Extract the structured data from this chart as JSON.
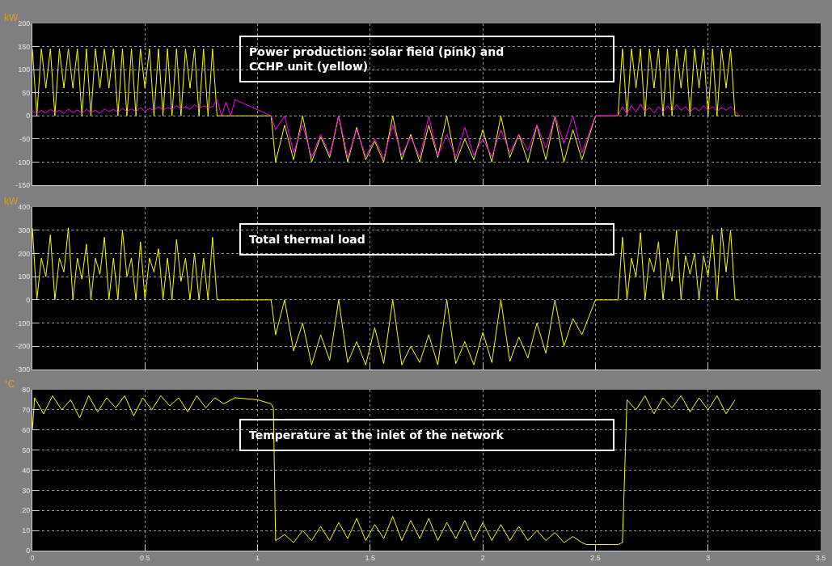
{
  "chart_data": [
    {
      "type": "line",
      "title": "Power production: solar field (pink) and\nCCHP unit (yellow)",
      "ylabel": "kW",
      "xlim": [
        0,
        3.5
      ],
      "xticks": [
        0,
        0.5,
        1,
        1.5,
        2,
        2.5,
        3,
        3.5
      ],
      "ylim": [
        -150,
        200
      ],
      "yticks": [
        -150,
        -100,
        -50,
        0,
        50,
        100,
        150,
        200
      ],
      "grid": true,
      "tick_labels": "y",
      "x": [
        0,
        0.02,
        0.04,
        0.06,
        0.08,
        0.1,
        0.12,
        0.14,
        0.16,
        0.18,
        0.2,
        0.22,
        0.24,
        0.26,
        0.28,
        0.3,
        0.32,
        0.34,
        0.36,
        0.38,
        0.4,
        0.42,
        0.44,
        0.46,
        0.48,
        0.5,
        0.52,
        0.54,
        0.56,
        0.58,
        0.6,
        0.62,
        0.64,
        0.66,
        0.68,
        0.7,
        0.72,
        0.74,
        0.76,
        0.78,
        0.8,
        0.82,
        0.84,
        0.86,
        0.88,
        0.9,
        1.06,
        1.08,
        1.12,
        1.16,
        1.2,
        1.24,
        1.28,
        1.32,
        1.36,
        1.4,
        1.44,
        1.48,
        1.52,
        1.56,
        1.6,
        1.64,
        1.68,
        1.72,
        1.76,
        1.8,
        1.84,
        1.88,
        1.92,
        1.96,
        2,
        2.04,
        2.08,
        2.12,
        2.16,
        2.2,
        2.24,
        2.28,
        2.32,
        2.36,
        2.4,
        2.44,
        2.5,
        2.6,
        2.62,
        2.64,
        2.66,
        2.68,
        2.7,
        2.72,
        2.74,
        2.76,
        2.78,
        2.8,
        2.82,
        2.84,
        2.86,
        2.88,
        2.9,
        2.92,
        2.94,
        2.96,
        2.98,
        3,
        3.02,
        3.04,
        3.06,
        3.08,
        3.1,
        3.12,
        3.14
      ],
      "series": [
        {
          "color": "#ffff00",
          "values": [
            145,
            0,
            145,
            60,
            145,
            0,
            145,
            60,
            145,
            60,
            145,
            0,
            145,
            0,
            145,
            60,
            145,
            60,
            145,
            0,
            145,
            0,
            145,
            0,
            145,
            60,
            145,
            0,
            145,
            0,
            145,
            0,
            145,
            0,
            145,
            60,
            145,
            0,
            145,
            0,
            145,
            0,
            0,
            0,
            0,
            0,
            0,
            -100,
            -20,
            -95,
            0,
            -100,
            -45,
            -90,
            0,
            -100,
            -25,
            -95,
            -55,
            -100,
            0,
            -95,
            -40,
            -100,
            -20,
            -90,
            0,
            -100,
            -50,
            -95,
            -30,
            -100,
            0,
            -90,
            -40,
            -100,
            -20,
            -95,
            0,
            -100,
            -30,
            -95,
            0,
            0,
            145,
            0,
            145,
            60,
            145,
            0,
            145,
            60,
            145,
            0,
            145,
            0,
            145,
            60,
            145,
            0,
            145,
            60,
            145,
            0,
            145,
            0,
            145,
            60,
            145,
            0,
            0
          ]
        },
        {
          "color": "#ff00ff",
          "values": [
            10,
            5,
            12,
            6,
            14,
            8,
            12,
            5,
            15,
            7,
            13,
            6,
            14,
            8,
            12,
            6,
            15,
            9,
            14,
            8,
            16,
            10,
            15,
            9,
            18,
            10,
            16,
            12,
            20,
            12,
            18,
            14,
            22,
            15,
            20,
            14,
            24,
            16,
            22,
            18,
            20,
            35,
            0,
            30,
            0,
            35,
            0,
            -30,
            0,
            -80,
            -20,
            -90,
            -40,
            -85,
            0,
            -90,
            -30,
            -88,
            -50,
            -92,
            -20,
            -85,
            -45,
            -90,
            0,
            -87,
            -40,
            -90,
            -25,
            -85,
            -50,
            -88,
            -30,
            -80,
            -40,
            -75,
            -20,
            -70,
            0,
            -60,
            0,
            -80,
            0,
            0,
            20,
            5,
            22,
            8,
            25,
            10,
            18,
            6,
            20,
            8,
            22,
            10,
            24,
            12,
            20,
            8,
            18,
            10,
            22,
            12,
            20,
            10,
            18,
            12,
            20,
            10,
            0
          ]
        }
      ]
    },
    {
      "type": "line",
      "title": "Total thermal load",
      "ylabel": "kW",
      "xlim": [
        0,
        3.5
      ],
      "xticks": [
        0,
        0.5,
        1,
        1.5,
        2,
        2.5,
        3,
        3.5
      ],
      "ylim": [
        -300,
        400
      ],
      "yticks": [
        -300,
        -200,
        -100,
        0,
        100,
        200,
        300,
        400
      ],
      "grid": true,
      "tick_labels": "y",
      "x": [
        0,
        0.02,
        0.04,
        0.06,
        0.08,
        0.1,
        0.12,
        0.14,
        0.16,
        0.18,
        0.2,
        0.22,
        0.24,
        0.26,
        0.28,
        0.3,
        0.32,
        0.34,
        0.36,
        0.38,
        0.4,
        0.42,
        0.44,
        0.46,
        0.48,
        0.5,
        0.52,
        0.54,
        0.56,
        0.58,
        0.6,
        0.62,
        0.64,
        0.66,
        0.68,
        0.7,
        0.72,
        0.74,
        0.76,
        0.78,
        0.8,
        0.82,
        0.84,
        0.86,
        0.88,
        0.9,
        1.06,
        1.08,
        1.12,
        1.16,
        1.2,
        1.24,
        1.28,
        1.32,
        1.36,
        1.4,
        1.44,
        1.48,
        1.52,
        1.56,
        1.6,
        1.64,
        1.68,
        1.72,
        1.76,
        1.8,
        1.84,
        1.88,
        1.92,
        1.96,
        2,
        2.04,
        2.08,
        2.12,
        2.16,
        2.2,
        2.24,
        2.28,
        2.32,
        2.36,
        2.4,
        2.44,
        2.5,
        2.6,
        2.62,
        2.64,
        2.66,
        2.68,
        2.7,
        2.72,
        2.74,
        2.76,
        2.78,
        2.8,
        2.82,
        2.84,
        2.86,
        2.88,
        2.9,
        2.92,
        2.94,
        2.96,
        2.98,
        3,
        3.02,
        3.04,
        3.06,
        3.08,
        3.1,
        3.12,
        3.14
      ],
      "series": [
        {
          "color": "#ffff00",
          "values": [
            310,
            0,
            180,
            100,
            280,
            0,
            180,
            120,
            310,
            0,
            180,
            90,
            240,
            0,
            180,
            110,
            270,
            0,
            180,
            0,
            300,
            100,
            180,
            0,
            250,
            0,
            180,
            120,
            220,
            0,
            180,
            0,
            260,
            80,
            180,
            0,
            200,
            0,
            180,
            0,
            270,
            0,
            0,
            0,
            0,
            0,
            0,
            -150,
            0,
            -220,
            -100,
            -280,
            -150,
            -260,
            0,
            -270,
            -180,
            -280,
            -120,
            -275,
            0,
            -280,
            -200,
            -270,
            -150,
            -280,
            0,
            -275,
            -180,
            -280,
            -140,
            -270,
            0,
            -265,
            -160,
            -250,
            -100,
            -230,
            0,
            -200,
            -80,
            -150,
            0,
            0,
            270,
            0,
            180,
            100,
            290,
            0,
            180,
            120,
            250,
            0,
            180,
            80,
            300,
            0,
            190,
            110,
            200,
            0,
            190,
            100,
            280,
            0,
            310,
            120,
            300,
            0,
            0
          ]
        }
      ]
    },
    {
      "type": "line",
      "title": "Temperature at the inlet of the network",
      "ylabel": "°C",
      "xlim": [
        0,
        3.5
      ],
      "xticks": [
        0,
        0.5,
        1,
        1.5,
        2,
        2.5,
        3,
        3.5
      ],
      "ylim": [
        0,
        80
      ],
      "yticks": [
        0,
        10,
        20,
        30,
        40,
        50,
        60,
        70,
        80
      ],
      "grid": true,
      "x": [
        0,
        0.01,
        0.05,
        0.09,
        0.13,
        0.17,
        0.21,
        0.25,
        0.29,
        0.33,
        0.37,
        0.41,
        0.45,
        0.49,
        0.53,
        0.57,
        0.61,
        0.65,
        0.69,
        0.73,
        0.77,
        0.81,
        0.85,
        0.9,
        1,
        1.06,
        1.07,
        1.08,
        1.12,
        1.16,
        1.2,
        1.24,
        1.28,
        1.32,
        1.36,
        1.4,
        1.44,
        1.48,
        1.52,
        1.56,
        1.6,
        1.64,
        1.68,
        1.72,
        1.76,
        1.8,
        1.84,
        1.88,
        1.92,
        1.96,
        2,
        2.04,
        2.08,
        2.12,
        2.16,
        2.2,
        2.24,
        2.28,
        2.32,
        2.36,
        2.4,
        2.44,
        2.46,
        2.6,
        2.62,
        2.64,
        2.68,
        2.72,
        2.76,
        2.8,
        2.84,
        2.88,
        2.92,
        2.96,
        3,
        3.04,
        3.08,
        3.12
      ],
      "series": [
        {
          "color": "#ffff00",
          "values": [
            60,
            76,
            68,
            77,
            70,
            75,
            66,
            77,
            69,
            76,
            71,
            77,
            67,
            76,
            70,
            77,
            72,
            76,
            69,
            77,
            71,
            76,
            73,
            76,
            75,
            73,
            71,
            5,
            8,
            4,
            10,
            5,
            12,
            5,
            14,
            6,
            16,
            5,
            13,
            6,
            17,
            5,
            15,
            6,
            16,
            5,
            14,
            6,
            15,
            5,
            14,
            5,
            13,
            5,
            12,
            5,
            10,
            5,
            9,
            4,
            7,
            4,
            3,
            3,
            4,
            75,
            70,
            77,
            68,
            76,
            71,
            77,
            69,
            76,
            70,
            77,
            68,
            75
          ]
        }
      ]
    }
  ]
}
